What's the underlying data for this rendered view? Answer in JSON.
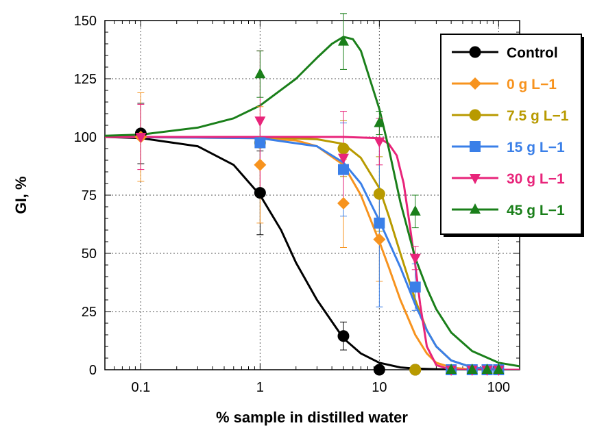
{
  "chart_data": {
    "type": "scatter",
    "title": "",
    "xlabel": "% sample in distilled water",
    "ylabel": "GI, %",
    "x_scale": "log",
    "xlim": [
      0.05,
      150
    ],
    "ylim": [
      0,
      150
    ],
    "x_ticks": [
      0.1,
      1,
      10,
      100
    ],
    "x_tick_labels": [
      "0.1",
      "1",
      "10",
      "100"
    ],
    "y_ticks": [
      0,
      25,
      50,
      75,
      100,
      125,
      150
    ],
    "y_tick_labels": [
      "0",
      "25",
      "50",
      "75",
      "100",
      "125",
      "150"
    ],
    "grid": true,
    "legend_position": "top-right",
    "series": [
      {
        "name": "Control",
        "color": "#000000",
        "marker": "circle",
        "x": [
          0.1,
          1,
          5,
          10,
          20
        ],
        "y": [
          101.5,
          76,
          14.5,
          0,
          0
        ],
        "error": [
          13,
          18,
          6,
          0,
          0
        ],
        "curve_x": [
          0.05,
          0.1,
          0.3,
          0.6,
          1,
          1.5,
          2,
          3,
          5,
          7,
          10,
          15,
          20,
          40,
          100,
          150
        ],
        "curve_y": [
          100,
          99.5,
          96,
          88,
          75,
          60,
          46,
          30,
          13.5,
          7,
          3,
          1,
          0.5,
          0,
          0,
          0
        ]
      },
      {
        "name": "0 g L−1",
        "color": "#f7931e",
        "marker": "diamond",
        "x": [
          0.1,
          1,
          5,
          10,
          20
        ],
        "y": [
          100,
          88,
          71.5,
          56,
          0
        ],
        "error": [
          19,
          25,
          19,
          18,
          2
        ],
        "curve_x": [
          0.05,
          1,
          2,
          3,
          5,
          7,
          10,
          12,
          15,
          20,
          25,
          30,
          40,
          60,
          100,
          150
        ],
        "curve_y": [
          100,
          99.5,
          98.5,
          96,
          88,
          75,
          55,
          44,
          30,
          15,
          7,
          3,
          1,
          0,
          0,
          0
        ]
      },
      {
        "name": "7.5 g L−1",
        "color": "#b89a00",
        "marker": "circle",
        "x": [
          1,
          5,
          10,
          20
        ],
        "y": [
          97.5,
          95,
          75.5,
          0
        ],
        "error": [
          10,
          12,
          16,
          2
        ],
        "curve_x": [
          0.05,
          1,
          3,
          5,
          7,
          10,
          12,
          15,
          20,
          25,
          30,
          40,
          60,
          100,
          150
        ],
        "curve_y": [
          100,
          100,
          99,
          97,
          91,
          78,
          66,
          50,
          30,
          17,
          10,
          4,
          1,
          0,
          0
        ]
      },
      {
        "name": "15 g L−1",
        "color": "#3a7fe8",
        "marker": "square",
        "x": [
          1,
          5,
          10,
          20,
          40,
          60,
          80,
          100
        ],
        "y": [
          97.5,
          86,
          63,
          35.5,
          0,
          0,
          0,
          0
        ],
        "error": [
          10,
          20,
          36,
          10,
          2,
          0,
          0,
          0
        ],
        "curve_x": [
          0.05,
          1,
          3,
          5,
          7,
          10,
          12,
          15,
          20,
          25,
          30,
          40,
          60,
          100,
          150
        ],
        "curve_y": [
          100,
          99.5,
          96,
          89,
          80,
          64,
          55,
          44,
          28,
          17,
          10,
          4,
          1,
          0,
          0
        ]
      },
      {
        "name": "30 g L−1",
        "color": "#e8247a",
        "marker": "triangle-down",
        "x": [
          0.1,
          1,
          5,
          10,
          20,
          40,
          60,
          80,
          100
        ],
        "y": [
          100,
          107,
          91,
          98,
          48,
          0,
          0,
          0,
          0
        ],
        "error": [
          14,
          30,
          20,
          10,
          5,
          0,
          0,
          0,
          0
        ],
        "curve_x": [
          0.05,
          1,
          5,
          10,
          12,
          14,
          16,
          18,
          20,
          22,
          25,
          30,
          40,
          100,
          150
        ],
        "curve_y": [
          100,
          100,
          100,
          99.5,
          97,
          92,
          80,
          62,
          45,
          28,
          10,
          2,
          0,
          0,
          0
        ]
      },
      {
        "name": "45 g L−1",
        "color": "#1a7f1a",
        "marker": "triangle-up",
        "x": [
          1,
          5,
          10,
          20,
          40,
          60,
          80,
          100
        ],
        "y": [
          127,
          141,
          106,
          68,
          0,
          0,
          0,
          0
        ],
        "error": [
          10,
          12,
          5,
          7,
          0,
          0,
          0,
          0
        ],
        "curve_x": [
          0.05,
          0.1,
          0.3,
          0.6,
          1,
          2,
          3,
          4,
          5,
          6,
          7,
          10,
          12,
          15,
          20,
          25,
          30,
          40,
          60,
          100,
          150
        ],
        "curve_y": [
          100.5,
          101,
          104,
          108,
          113.5,
          125,
          134,
          140,
          143,
          142,
          137,
          112,
          95,
          72,
          48,
          35,
          26,
          16,
          8,
          3,
          1.5
        ]
      }
    ]
  }
}
